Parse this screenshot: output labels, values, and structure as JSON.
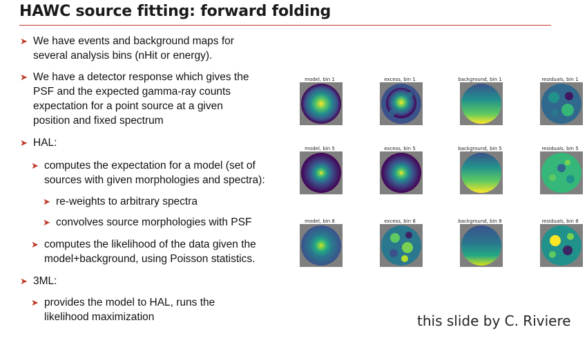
{
  "title": "HAWC source fitting: forward folding",
  "bullets": [
    "We have events and background maps for\nseveral analysis bins (nHit or energy).",
    "We have a detector response which gives the\nPSF and the expected gamma-ray counts\nexpectation for a point source at a given\nposition and fixed spectrum",
    "HAL:",
    "computes the expectation for a model (set of\nsources with given morphologies and spectra):",
    "re-weights to arbitrary spectra",
    "convolves source morphologies with PSF",
    "computes the likelihood of the data given the\nmodel+background, using Poisson statistics.",
    "3ML:",
    "provides the model to HAL, runs the\nlikelihood maximization"
  ],
  "figure": {
    "rows": [
      [
        "model, bin 1",
        "excess, bin 1",
        "background, bin 1",
        "residuals, bin 1"
      ],
      [
        "model, bin 5",
        "excess, bin 5",
        "background, bin 5",
        "residuals, bin 5"
      ],
      [
        "model, bin 8",
        "excess, bin 8",
        "background, bin 8",
        "residuals, bin 8"
      ]
    ],
    "panel_background": "#7f7f7f",
    "colormap": "viridis"
  },
  "credit": "this slide by C. Riviere",
  "colors": {
    "accent": "#c0392b",
    "text": "#111111"
  }
}
